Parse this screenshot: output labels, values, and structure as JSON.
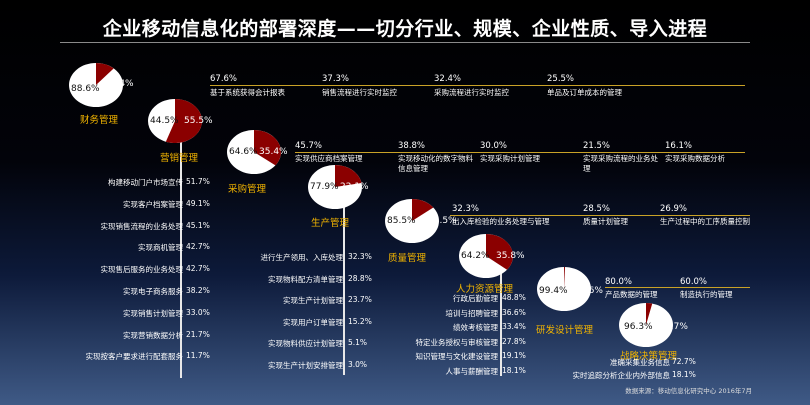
{
  "title": "企业移动信息化的部署深度——切分行业、规模、企业性质、导入进程",
  "source": "数据来源：移动信息化研究中心 2016年7月",
  "colors": {
    "pie_main": "#ffffff",
    "pie_slice": "#8b0000",
    "dept_label": "#f2b400",
    "rule": "#c9a227"
  },
  "chart_data": [
    {
      "type": "pie",
      "title": "财务管理",
      "slices": [
        {
          "label": "88.6%",
          "value": 88.6
        },
        {
          "label": "11.4%",
          "value": 11.4
        }
      ],
      "items": [
        {
          "pct": "67.6%",
          "text": "基于系统获得会计报表"
        },
        {
          "pct": "37.3%",
          "text": "销售流程进行实时监控"
        },
        {
          "pct": "32.4%",
          "text": "采购流程进行实时监控"
        },
        {
          "pct": "25.5%",
          "text": "单品及订单成本的管理"
        }
      ]
    },
    {
      "type": "pie",
      "title": "营销管理",
      "slices": [
        {
          "label": "44.5%",
          "value": 44.5
        },
        {
          "label": "55.5%",
          "value": 55.5
        }
      ],
      "items": [
        {
          "text": "构建移动门户市场宣传",
          "pct": "51.7%"
        },
        {
          "text": "实现客户档案管理",
          "pct": "49.1%"
        },
        {
          "text": "实现销售流程的业务处理",
          "pct": "45.1%"
        },
        {
          "text": "实现商机管理",
          "pct": "42.7%"
        },
        {
          "text": "实现售后服务的业务处理",
          "pct": "42.7%"
        },
        {
          "text": "实现电子商务服务",
          "pct": "38.2%"
        },
        {
          "text": "实现销售计划管理",
          "pct": "33.0%"
        },
        {
          "text": "实现营销数据分析",
          "pct": "21.7%"
        },
        {
          "text": "实现按客户要求进行配套服务",
          "pct": "11.7%"
        }
      ]
    },
    {
      "type": "pie",
      "title": "采购管理",
      "slices": [
        {
          "label": "64.6%",
          "value": 64.6
        },
        {
          "label": "35.4%",
          "value": 35.4
        }
      ],
      "items": [
        {
          "pct": "45.7%",
          "text": "实现供应商档案管理"
        },
        {
          "pct": "38.8%",
          "text": "实现移动化的数字物料信息管理"
        },
        {
          "pct": "30.0%",
          "text": "实现采购计划管理"
        },
        {
          "pct": "21.5%",
          "text": "实现采购流程的业务处理"
        },
        {
          "pct": "16.1%",
          "text": "实现采购数据分析"
        }
      ]
    },
    {
      "type": "pie",
      "title": "生产管理",
      "slices": [
        {
          "label": "77.9%",
          "value": 77.9
        },
        {
          "label": "22.1%",
          "value": 22.1
        }
      ],
      "items": [
        {
          "text": "进行生产领用、入库处理",
          "pct": "32.3%"
        },
        {
          "text": "实现物料配方清单管理",
          "pct": "28.8%"
        },
        {
          "text": "实现生产计划管理",
          "pct": "23.7%"
        },
        {
          "text": "实现用户订单管理",
          "pct": "15.2%"
        },
        {
          "text": "实现物料供应计划管理",
          "pct": "5.1%"
        },
        {
          "text": "实现生产计划安排管理",
          "pct": "3.0%"
        }
      ]
    },
    {
      "type": "pie",
      "title": "质量管理",
      "slices": [
        {
          "label": "85.5%",
          "value": 85.5
        },
        {
          "label": "14.5%",
          "value": 14.5
        }
      ],
      "items": [
        {
          "pct": "32.3%",
          "text": "出入库检验的业务处理与管理"
        },
        {
          "pct": "28.5%",
          "text": "质量计划管理"
        },
        {
          "pct": "26.9%",
          "text": "生产过程中的工序质量控制"
        }
      ]
    },
    {
      "type": "pie",
      "title": "人力资源管理",
      "slices": [
        {
          "label": "64.2%",
          "value": 64.2
        },
        {
          "label": "35.8%",
          "value": 35.8
        }
      ],
      "items": [
        {
          "text": "行政后勤管理",
          "pct": "48.8%"
        },
        {
          "text": "培训与招聘管理",
          "pct": "36.6%"
        },
        {
          "text": "绩效考核管理",
          "pct": "33.4%"
        },
        {
          "text": "特定业务授权与审核管理",
          "pct": "27.8%"
        },
        {
          "text": "知识管理与文化建设管理",
          "pct": "19.1%"
        },
        {
          "text": "人事与薪酬管理",
          "pct": "18.1%"
        }
      ]
    },
    {
      "type": "pie",
      "title": "研发设计管理",
      "slices": [
        {
          "label": "99.4%",
          "value": 99.4
        },
        {
          "label": "0.6%",
          "value": 0.6
        }
      ],
      "items": [
        {
          "pct": "80.0%",
          "text": "产品数据的管理"
        },
        {
          "pct": "60.0%",
          "text": "制造执行的管理"
        }
      ]
    },
    {
      "type": "pie",
      "title": "战略决策管理",
      "slices": [
        {
          "label": "96.3%",
          "value": 96.3
        },
        {
          "label": "3.7%",
          "value": 3.7
        }
      ],
      "items": [
        {
          "text": "准确采集业务信息",
          "pct": "72.7%"
        },
        {
          "text": "实时追踪分析企业内外部信息",
          "pct": "18.1%"
        }
      ]
    }
  ]
}
